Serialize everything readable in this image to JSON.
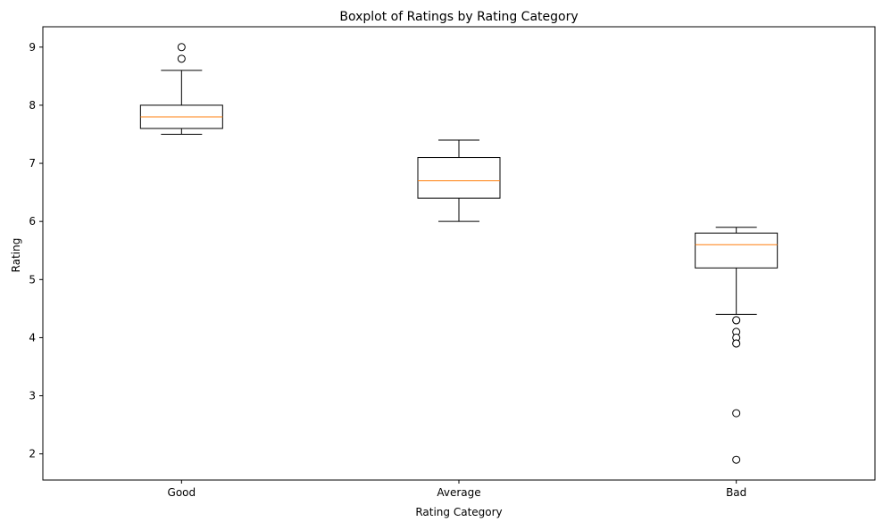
{
  "chart_data": {
    "type": "boxplot",
    "title": "Boxplot of Ratings by Rating Category",
    "xlabel": "Rating Category",
    "ylabel": "Rating",
    "ylim": [
      1.55,
      9.35
    ],
    "yticks": [
      2,
      3,
      4,
      5,
      6,
      7,
      8,
      9
    ],
    "grid": false,
    "categories": [
      "Good",
      "Average",
      "Bad"
    ],
    "boxes": [
      {
        "category": "Good",
        "whisker_low": 7.5,
        "q1": 7.6,
        "median": 7.8,
        "q3": 8.0,
        "whisker_high": 8.6,
        "outliers": [
          9.0,
          8.8
        ]
      },
      {
        "category": "Average",
        "whisker_low": 6.0,
        "q1": 6.4,
        "median": 6.7,
        "q3": 7.1,
        "whisker_high": 7.4,
        "outliers": []
      },
      {
        "category": "Bad",
        "whisker_low": 4.4,
        "q1": 5.2,
        "median": 5.6,
        "q3": 5.8,
        "whisker_high": 5.9,
        "outliers": [
          4.3,
          4.3,
          4.1,
          4.0,
          3.9,
          3.9,
          2.7,
          1.9
        ]
      }
    ],
    "colors": {
      "box": "#000000",
      "median": "#ff7f0e",
      "outlier_face": "#ffffff",
      "outlier_edge": "#000000"
    }
  }
}
